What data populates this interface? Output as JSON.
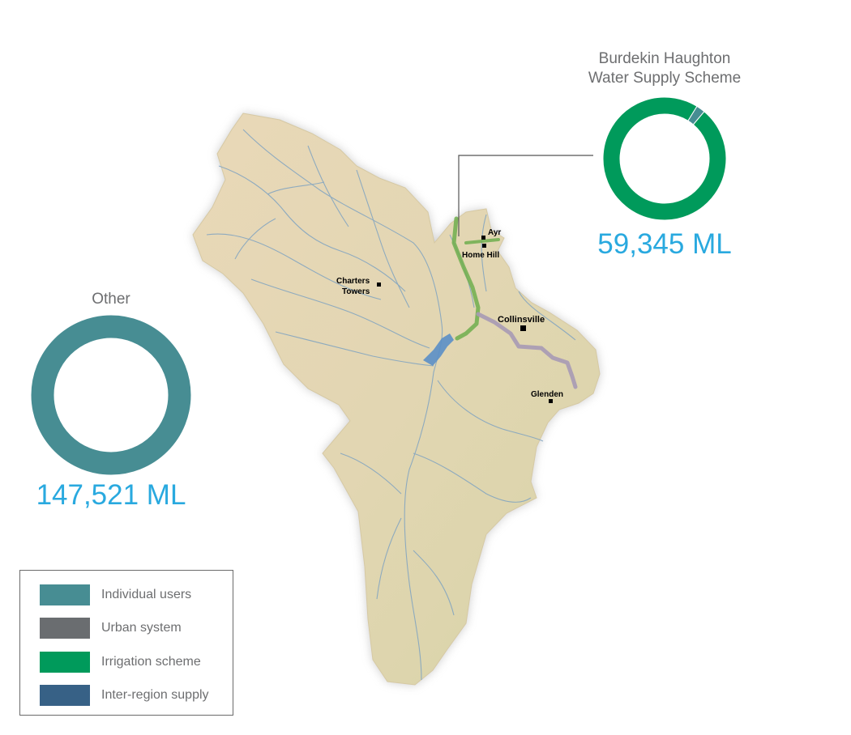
{
  "colors": {
    "individual_users": "#478d93",
    "urban_system": "#6a6d70",
    "irrigation_scheme": "#009a5b",
    "inter_region_supply": "#376186",
    "value_text": "#29a9df",
    "title_text": "#6d6e70",
    "catchment_fill": "#e4d6b1",
    "river": "#7fa3c1",
    "pipeline_green": "#6fae4d",
    "pipeline_purple": "#a79ab5",
    "dam": "#5b8fc6"
  },
  "donuts": {
    "burdekin": {
      "title_line1": "Burdekin Haughton",
      "title_line2": "Water Supply Scheme",
      "value": "59,345 ML",
      "segments": [
        {
          "category": "Irrigation scheme",
          "fraction": 0.977,
          "color": "#009a5b"
        },
        {
          "category": "Individual users",
          "fraction": 0.023,
          "color": "#478d93"
        }
      ]
    },
    "other": {
      "title": "Other",
      "value": "147,521 ML",
      "segments": [
        {
          "category": "Individual users",
          "fraction": 1.0,
          "color": "#478d93"
        }
      ]
    }
  },
  "map": {
    "towns": {
      "ayr": "Ayr",
      "home_hill": "Home Hill",
      "charters_line1": "Charters",
      "charters_line2": "Towers",
      "collinsville": "Collinsville",
      "glenden": "Glenden"
    }
  },
  "legend": {
    "items": [
      {
        "label": "Individual users",
        "color": "#478d93"
      },
      {
        "label": "Urban system",
        "color": "#6a6d70"
      },
      {
        "label": "Irrigation scheme",
        "color": "#009a5b"
      },
      {
        "label": "Inter-region supply",
        "color": "#376186"
      }
    ]
  }
}
